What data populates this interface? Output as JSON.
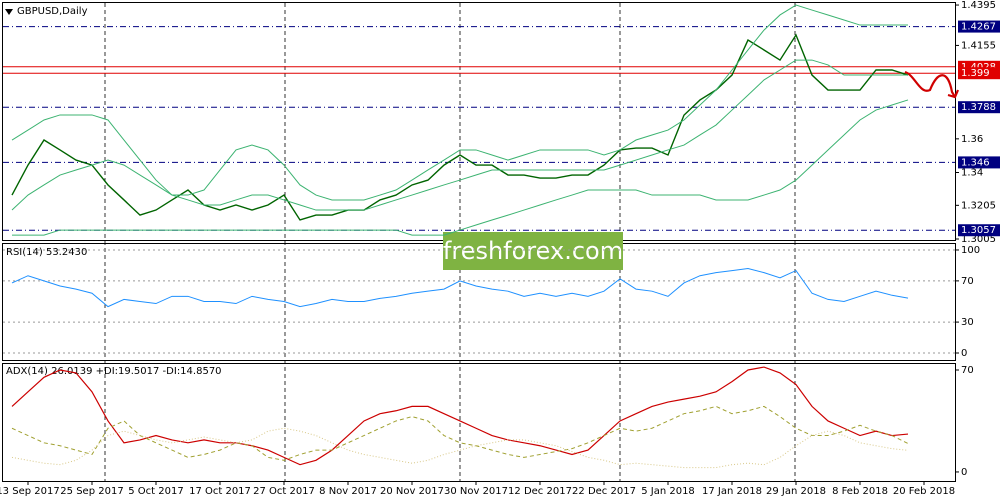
{
  "chart_data": [
    {
      "type": "line",
      "title": "GBPUSD,Daily",
      "ylim": [
        1.2999,
        1.4413
      ],
      "yticks": [
        1.4395,
        1.4155,
        1.36,
        1.34,
        1.3205,
        1.3005
      ],
      "levels": [
        {
          "value": 1.4267,
          "color": "#000080",
          "style": "dashdot"
        },
        {
          "value": 1.4028,
          "color": "#e00000",
          "style": "solid"
        },
        {
          "value": 1.399,
          "color": "#e00000",
          "style": "solid"
        },
        {
          "value": 1.3788,
          "color": "#000080",
          "style": "dashdot"
        },
        {
          "value": 1.346,
          "color": "#000080",
          "style": "dashdot"
        },
        {
          "value": 1.3057,
          "color": "#000080",
          "style": "dashdot"
        }
      ],
      "watermark": "freshforex.com",
      "series": [
        {
          "color": "#006400",
          "width": 1.4,
          "style": "solid",
          "values": [
            1.3266,
            1.3444,
            1.3593,
            1.3534,
            1.3474,
            1.3444,
            1.3326,
            1.3237,
            1.3147,
            1.3177,
            1.3237,
            1.3296,
            1.3207,
            1.3177,
            1.3207,
            1.3177,
            1.3207,
            1.3266,
            1.3118,
            1.3147,
            1.3147,
            1.3177,
            1.3177,
            1.3237,
            1.3266,
            1.3326,
            1.3355,
            1.3444,
            1.3504,
            1.3444,
            1.3444,
            1.3385,
            1.3385,
            1.3367,
            1.3367,
            1.3385,
            1.3385,
            1.3444,
            1.3534,
            1.3545,
            1.3545,
            1.3504,
            1.3741,
            1.3831,
            1.389,
            1.3979,
            1.4187,
            1.4128,
            1.4068,
            1.4217,
            1.3979,
            1.389,
            1.389,
            1.389,
            1.4009,
            1.4009,
            1.3979,
            null
          ]
        },
        {
          "color": "#3cb371",
          "width": 1,
          "style": "solid",
          "values": [
            1.3593,
            1.3652,
            1.3712,
            1.3742,
            1.3742,
            1.3742,
            1.3712,
            1.3593,
            1.3474,
            1.3355,
            1.3266,
            1.3266,
            1.3296,
            1.3415,
            1.3534,
            1.3563,
            1.3534,
            1.3444,
            1.3326,
            1.3266,
            1.3237,
            1.3237,
            1.3237,
            1.3266,
            1.3296,
            1.3355,
            1.3415,
            1.3474,
            1.3534,
            1.3534,
            1.3504,
            1.3474,
            1.3504,
            1.3534,
            1.3534,
            1.3534,
            1.3534,
            1.3504,
            1.3534,
            1.3593,
            1.3623,
            1.3652,
            1.3712,
            1.3801,
            1.389,
            1.4009,
            1.4128,
            1.4246,
            1.4336,
            1.4395,
            1.4365,
            1.4336,
            1.4306,
            1.4276,
            1.4276,
            1.4276,
            1.4276,
            null
          ]
        },
        {
          "color": "#3cb371",
          "width": 1,
          "style": "solid",
          "values": [
            1.3177,
            1.3266,
            1.3326,
            1.3385,
            1.3415,
            1.3444,
            1.3474,
            1.3444,
            1.3385,
            1.3326,
            1.3266,
            1.3237,
            1.3207,
            1.3207,
            1.3237,
            1.3266,
            1.3266,
            1.3237,
            1.3207,
            1.3177,
            1.3177,
            1.3177,
            1.3177,
            1.3207,
            1.3237,
            1.3266,
            1.3296,
            1.3326,
            1.3355,
            1.3385,
            1.3415,
            1.3415,
            1.3415,
            1.3415,
            1.3415,
            1.3415,
            1.3415,
            1.3415,
            1.3444,
            1.3474,
            1.3504,
            1.3534,
            1.3563,
            1.3623,
            1.3682,
            1.3771,
            1.386,
            1.395,
            1.4009,
            1.4068,
            1.4068,
            1.4039,
            1.3979,
            1.3979,
            1.3979,
            1.3979,
            1.3979,
            null
          ]
        },
        {
          "color": "#3cb371",
          "width": 1,
          "style": "solid",
          "values": [
            1.3028,
            1.3028,
            1.3028,
            1.3058,
            1.3058,
            1.3058,
            1.3058,
            1.3058,
            1.3058,
            1.3058,
            1.3058,
            1.3058,
            1.3058,
            1.3058,
            1.3058,
            1.3058,
            1.3058,
            1.3058,
            1.3058,
            1.3058,
            1.3058,
            1.3058,
            1.3058,
            1.3058,
            1.3058,
            1.3028,
            1.3028,
            1.3028,
            1.3058,
            1.3088,
            1.3118,
            1.3147,
            1.3177,
            1.3207,
            1.3237,
            1.3266,
            1.3296,
            1.3296,
            1.3296,
            1.3296,
            1.3266,
            1.3266,
            1.3266,
            1.3266,
            1.3237,
            1.3237,
            1.3237,
            1.3266,
            1.3296,
            1.3355,
            1.3444,
            1.3534,
            1.3623,
            1.3712,
            1.3771,
            1.3801,
            1.3831,
            null
          ]
        }
      ]
    },
    {
      "type": "line",
      "title": "RSI(14) 53.2430",
      "ylim": [
        -6.8,
        105.8
      ],
      "yticks": [
        100,
        70,
        30,
        0
      ],
      "grid": true,
      "series": [
        {
          "color": "#1e90ff",
          "width": 1,
          "style": "solid",
          "values": [
            68,
            75,
            70,
            65,
            62,
            58,
            45,
            52,
            50,
            48,
            55,
            55,
            50,
            50,
            48,
            55,
            52,
            50,
            45,
            48,
            52,
            50,
            50,
            53,
            55,
            58,
            60,
            62,
            70,
            65,
            62,
            60,
            55,
            58,
            55,
            58,
            55,
            60,
            72,
            62,
            60,
            55,
            68,
            75,
            78,
            80,
            82,
            78,
            73,
            80,
            58,
            52,
            50,
            55,
            60,
            56,
            53.243,
            null
          ]
        }
      ]
    },
    {
      "type": "line",
      "title": "ADX(14) 26.0139 +DI:19.5017 -DI:14.8570",
      "ylim": [
        -6.9,
        74.8
      ],
      "yticks": [
        70,
        0
      ],
      "categories": [
        null,
        "13 Sep 2017",
        null,
        null,
        null,
        "25 Sep 2017",
        null,
        null,
        null,
        "5 Oct 2017",
        null,
        null,
        null,
        "17 Oct 2017",
        null,
        null,
        null,
        "27 Oct 2017",
        null,
        null,
        null,
        "8 Nov 2017",
        null,
        null,
        null,
        "20 Nov 2017",
        null,
        null,
        null,
        "30 Nov 2017",
        null,
        null,
        null,
        "12 Dec 2017",
        null,
        null,
        null,
        "22 Dec 2017",
        null,
        null,
        null,
        "5 Jan 2018",
        null,
        null,
        null,
        "17 Jan 2018",
        null,
        null,
        null,
        "29 Jan 2018",
        null,
        null,
        null,
        "8 Feb 2018",
        null,
        null,
        null,
        "20 Feb 2018"
      ],
      "series": [
        {
          "color": "#cc0000",
          "width": 1.2,
          "style": "solid",
          "values": [
            45,
            55,
            65,
            70,
            68,
            55,
            35,
            20,
            22,
            25,
            22,
            20,
            22,
            20,
            20,
            18,
            15,
            10,
            5,
            8,
            15,
            25,
            35,
            40,
            42,
            45,
            45,
            40,
            35,
            30,
            25,
            22,
            20,
            18,
            15,
            12,
            15,
            25,
            35,
            40,
            45,
            48,
            50,
            52,
            55,
            62,
            70,
            72,
            68,
            60,
            45,
            35,
            30,
            25,
            28,
            25,
            26.0139,
            null
          ]
        },
        {
          "color": "#a0a030",
          "width": 1,
          "style": "dashed",
          "values": [
            30,
            25,
            20,
            18,
            15,
            12,
            30,
            35,
            25,
            20,
            15,
            10,
            12,
            15,
            20,
            18,
            10,
            8,
            12,
            15,
            15,
            20,
            25,
            30,
            35,
            38,
            35,
            25,
            20,
            18,
            15,
            12,
            10,
            12,
            14,
            16,
            20,
            25,
            30,
            28,
            30,
            35,
            40,
            42,
            45,
            40,
            42,
            45,
            38,
            30,
            25,
            25,
            28,
            32,
            28,
            25,
            19.5017,
            null
          ]
        },
        {
          "color": "#d8c888",
          "width": 1,
          "style": "dotted",
          "values": [
            10,
            8,
            6,
            5,
            8,
            15,
            25,
            28,
            25,
            22,
            20,
            22,
            24,
            22,
            20,
            22,
            28,
            30,
            28,
            25,
            20,
            15,
            12,
            10,
            8,
            6,
            8,
            12,
            15,
            18,
            20,
            22,
            22,
            20,
            18,
            14,
            10,
            8,
            5,
            6,
            5,
            4,
            3,
            3,
            3,
            5,
            6,
            5,
            10,
            18,
            25,
            28,
            25,
            20,
            18,
            16,
            14.857,
            null
          ]
        }
      ]
    }
  ]
}
